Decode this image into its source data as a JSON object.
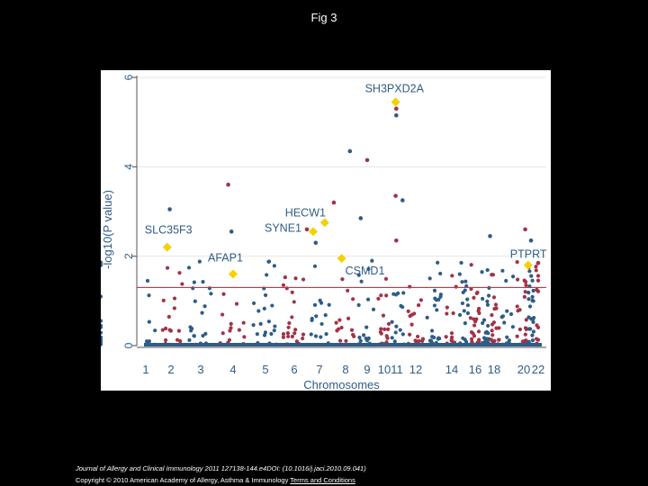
{
  "figure": {
    "title": "Fig 3"
  },
  "footer": {
    "citation": "Journal of Allergy and Clinical Immunology 2011 127138-144.e4DOI: (10.1016/j.jaci.2010.09.041)",
    "copyright": "Copyright © 2010 American Academy of Allergy, Asthma & Immunology ",
    "terms_link": "Terms and Conditions"
  },
  "colors": {
    "blue": "#2f5c86",
    "red": "#a33246",
    "highlight": "#f3d200",
    "threshold": "#c0394a",
    "axis_text": "#2f5c86",
    "grid": "#e6e6e6"
  },
  "chart_data": {
    "type": "scatter",
    "title": "",
    "xlabel": "Chromosomes",
    "ylabel": "-log10(P value)",
    "ylim": [
      0,
      6
    ],
    "yticks": [
      "0",
      "2",
      "4",
      "6"
    ],
    "xticks": [
      "1",
      "2",
      "3",
      "4",
      "5",
      "6",
      "7",
      "8",
      "9",
      "10",
      "11",
      "12",
      "14",
      "16",
      "18",
      "20",
      "22"
    ],
    "grid": true,
    "threshold": 1.3,
    "highlighted": [
      {
        "label": "SLC35F3",
        "chrom": 1.85,
        "y": 2.2
      },
      {
        "label": "AFAP1",
        "chrom": 4.0,
        "y": 1.6
      },
      {
        "label": "SYNE1",
        "chrom": 6.75,
        "y": 2.55
      },
      {
        "label": "HECW1",
        "chrom": 7.2,
        "y": 2.75
      },
      {
        "label": "CSMD1",
        "chrom": 7.85,
        "y": 1.95
      },
      {
        "label": "SH3PXD2A",
        "chrom": 10.9,
        "y": 5.45
      },
      {
        "label": "PTPRT",
        "chrom": 20.6,
        "y": 1.8
      }
    ],
    "notable_points": [
      {
        "chrom": 1.95,
        "y": 3.05
      },
      {
        "chrom": 3.85,
        "y": 3.6
      },
      {
        "chrom": 3.95,
        "y": 2.55
      },
      {
        "chrom": 7.55,
        "y": 3.2
      },
      {
        "chrom": 8.2,
        "y": 4.35
      },
      {
        "chrom": 9.0,
        "y": 4.15
      },
      {
        "chrom": 8.7,
        "y": 2.85
      },
      {
        "chrom": 6.5,
        "y": 2.6
      },
      {
        "chrom": 6.85,
        "y": 2.3
      },
      {
        "chrom": 10.95,
        "y": 5.3
      },
      {
        "chrom": 10.95,
        "y": 5.15
      },
      {
        "chrom": 10.9,
        "y": 3.35
      },
      {
        "chrom": 11.3,
        "y": 3.25
      },
      {
        "chrom": 10.95,
        "y": 2.35
      },
      {
        "chrom": 17.5,
        "y": 2.45
      },
      {
        "chrom": 20.2,
        "y": 2.6
      },
      {
        "chrom": 21.0,
        "y": 2.35
      },
      {
        "chrom": 22.0,
        "y": 1.85
      }
    ],
    "series": [
      {
        "name": "",
        "color_key": "blue"
      },
      {
        "name": "",
        "color_key": "red"
      }
    ]
  }
}
